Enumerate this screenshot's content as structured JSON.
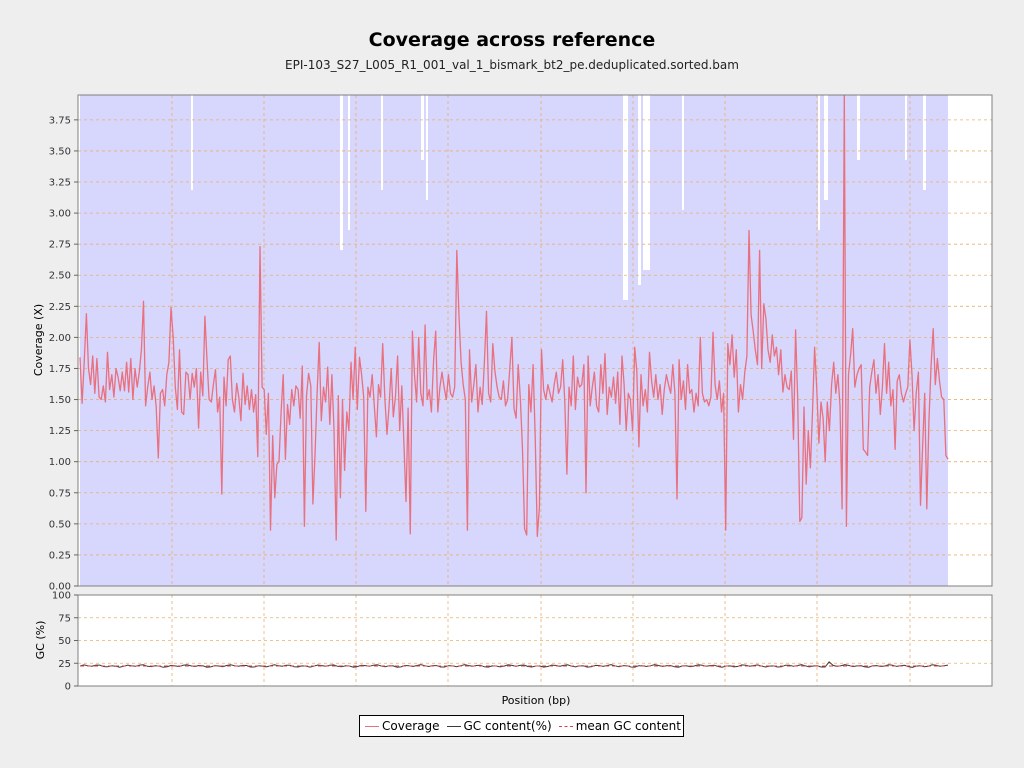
{
  "chart_data": [
    {
      "type": "line",
      "title": "Coverage across reference",
      "subtitle": "EPI-103_S27_L005_R1_001_val_1_bismark_bt2_pe.deduplicated.sorted.bam",
      "xlabel": "Position (bp)",
      "ylabel": "Coverage (X)",
      "ylim": [
        0,
        3.95
      ],
      "yticks": [
        "0.00",
        "0.25",
        "0.50",
        "0.75",
        "1.00",
        "1.25",
        "1.50",
        "1.75",
        "2.00",
        "2.25",
        "2.50",
        "2.75",
        "3.00",
        "3.25",
        "3.50",
        "3.75"
      ],
      "grid": true,
      "series": [
        {
          "name": "Coverage",
          "color": "#e8707f",
          "values": [
            1.84,
            1.47,
            1.8,
            2.19,
            1.75,
            1.62,
            1.85,
            1.55,
            1.83,
            1.52,
            1.5,
            1.61,
            1.48,
            1.88,
            1.58,
            1.7,
            1.52,
            1.75,
            1.68,
            1.57,
            1.72,
            1.57,
            1.8,
            1.56,
            1.83,
            1.5,
            1.75,
            1.6,
            1.72,
            1.9,
            2.29,
            1.45,
            1.6,
            1.72,
            1.5,
            1.61,
            1.44,
            1.03,
            1.55,
            1.58,
            1.45,
            1.7,
            1.8,
            2.24,
            2.0,
            1.6,
            1.42,
            1.9,
            1.4,
            1.38,
            1.72,
            1.7,
            1.5,
            1.71,
            1.6,
            1.75,
            1.27,
            1.72,
            1.53,
            2.17,
            1.82,
            1.5,
            1.48,
            1.62,
            1.74,
            1.4,
            1.52,
            0.74,
            1.68,
            1.45,
            1.82,
            1.85,
            1.5,
            1.4,
            1.63,
            1.52,
            1.33,
            1.71,
            1.46,
            1.61,
            1.42,
            1.58,
            1.4,
            1.54,
            1.04,
            2.73,
            1.6,
            1.58,
            1.22,
            1.55,
            0.45,
            1.21,
            0.71,
            0.98,
            1.0,
            1.4,
            1.7,
            1.02,
            1.46,
            1.3,
            1.58,
            1.45,
            1.61,
            1.58,
            1.35,
            1.77,
            0.48,
            1.53,
            1.71,
            1.61,
            0.66,
            1.05,
            1.55,
            1.96,
            1.33,
            1.6,
            1.48,
            1.76,
            1.3,
            1.7,
            1.26,
            0.37,
            1.53,
            0.71,
            1.5,
            0.93,
            1.4,
            1.25,
            1.8,
            1.5,
            1.92,
            1.42,
            1.84,
            1.7,
            1.52,
            0.6,
            1.6,
            1.52,
            1.7,
            1.45,
            1.2,
            1.62,
            1.52,
            1.95,
            1.5,
            1.22,
            1.45,
            1.75,
            1.36,
            1.52,
            1.85,
            1.25,
            1.61,
            1.15,
            0.68,
            1.43,
            0.42,
            2.05,
            1.7,
            1.48,
            2.0,
            1.55,
            1.45,
            2.1,
            1.5,
            1.58,
            1.4,
            1.82,
            2.05,
            1.4,
            1.6,
            1.72,
            1.6,
            1.5,
            1.7,
            1.55,
            1.52,
            1.6,
            2.7,
            2.17,
            1.8,
            1.62,
            1.5,
            0.45,
            1.9,
            1.48,
            1.62,
            1.78,
            1.4,
            1.6,
            1.46,
            1.8,
            2.21,
            1.55,
            1.48,
            1.95,
            1.73,
            1.6,
            1.52,
            1.5,
            1.65,
            1.45,
            1.5,
            1.75,
            2.0,
            1.43,
            1.35,
            1.78,
            1.5,
            1.1,
            0.46,
            0.41,
            1.62,
            1.4,
            1.78,
            1.2,
            0.4,
            0.63,
            1.9,
            1.58,
            1.5,
            1.62,
            1.55,
            1.48,
            1.62,
            1.72,
            1.55,
            1.6,
            1.82,
            1.48,
            0.9,
            1.6,
            1.45,
            1.85,
            1.42,
            1.68,
            1.6,
            1.62,
            1.78,
            0.75,
            1.85,
            1.45,
            1.6,
            1.72,
            1.45,
            1.4,
            1.78,
            1.55,
            1.87,
            1.38,
            1.6,
            1.52,
            1.68,
            1.47,
            1.72,
            1.3,
            1.85,
            1.62,
            1.25,
            1.55,
            1.5,
            1.25,
            1.92,
            1.73,
            1.12,
            1.7,
            1.45,
            1.58,
            1.4,
            1.88,
            1.65,
            1.52,
            1.7,
            1.5,
            1.62,
            1.38,
            1.58,
            1.7,
            1.62,
            1.55,
            1.78,
            1.55,
            0.7,
            1.82,
            1.5,
            1.65,
            1.42,
            1.78,
            1.55,
            1.58,
            1.4,
            1.55,
            1.45,
            2.0,
            1.55,
            1.48,
            1.5,
            1.45,
            1.52,
            2.04,
            1.62,
            1.5,
            1.65,
            1.4,
            1.55,
            0.45,
            1.95,
            1.78,
            2.02,
            1.68,
            1.9,
            1.4,
            1.62,
            1.5,
            1.72,
            1.85,
            2.86,
            2.18,
            2.05,
            1.9,
            1.78,
            2.7,
            1.75,
            2.27,
            2.15,
            1.9,
            1.8,
            2.02,
            1.85,
            1.92,
            1.7,
            1.9,
            1.56,
            1.7,
            1.6,
            1.58,
            1.73,
            1.18,
            2.06,
            1.5,
            0.52,
            0.55,
            1.44,
            0.82,
            1.25,
            0.95,
            1.4,
            1.92,
            1.6,
            1.15,
            1.48,
            1.35,
            1.0,
            1.48,
            1.25,
            1.62,
            1.8,
            1.55,
            1.7,
            1.45,
            0.62,
            3.95,
            0.48,
            1.7,
            1.86,
            2.07,
            1.6,
            1.7,
            1.75,
            1.78,
            1.1,
            1.08,
            1.05,
            1.6,
            1.72,
            1.82,
            1.55,
            1.7,
            1.38,
            1.6,
            1.95,
            1.55,
            1.8,
            1.45,
            1.58,
            1.1,
            1.65,
            1.7,
            1.55,
            1.48,
            1.55,
            1.6,
            1.98,
            1.7,
            1.25,
            1.55,
            1.72,
            0.65,
            1.12,
            1.55,
            0.62,
            1.32,
            1.78,
            2.07,
            1.62,
            1.83,
            1.65,
            1.52,
            1.5,
            1.05,
            1.02
          ]
        }
      ]
    },
    {
      "type": "line",
      "ylabel": "GC (%)",
      "ylim": [
        0,
        100
      ],
      "yticks": [
        "0",
        "25",
        "50",
        "75",
        "100"
      ],
      "grid": true,
      "series": [
        {
          "name": "GC content(%)",
          "color": "#3a3a3a",
          "mean_value": 22
        },
        {
          "name": "mean GC content",
          "color": "#e04040",
          "values": [
            22
          ]
        }
      ]
    }
  ],
  "legend": {
    "coverage": "Coverage",
    "gc": "GC content(%)",
    "mean_gc": "mean GC content"
  }
}
